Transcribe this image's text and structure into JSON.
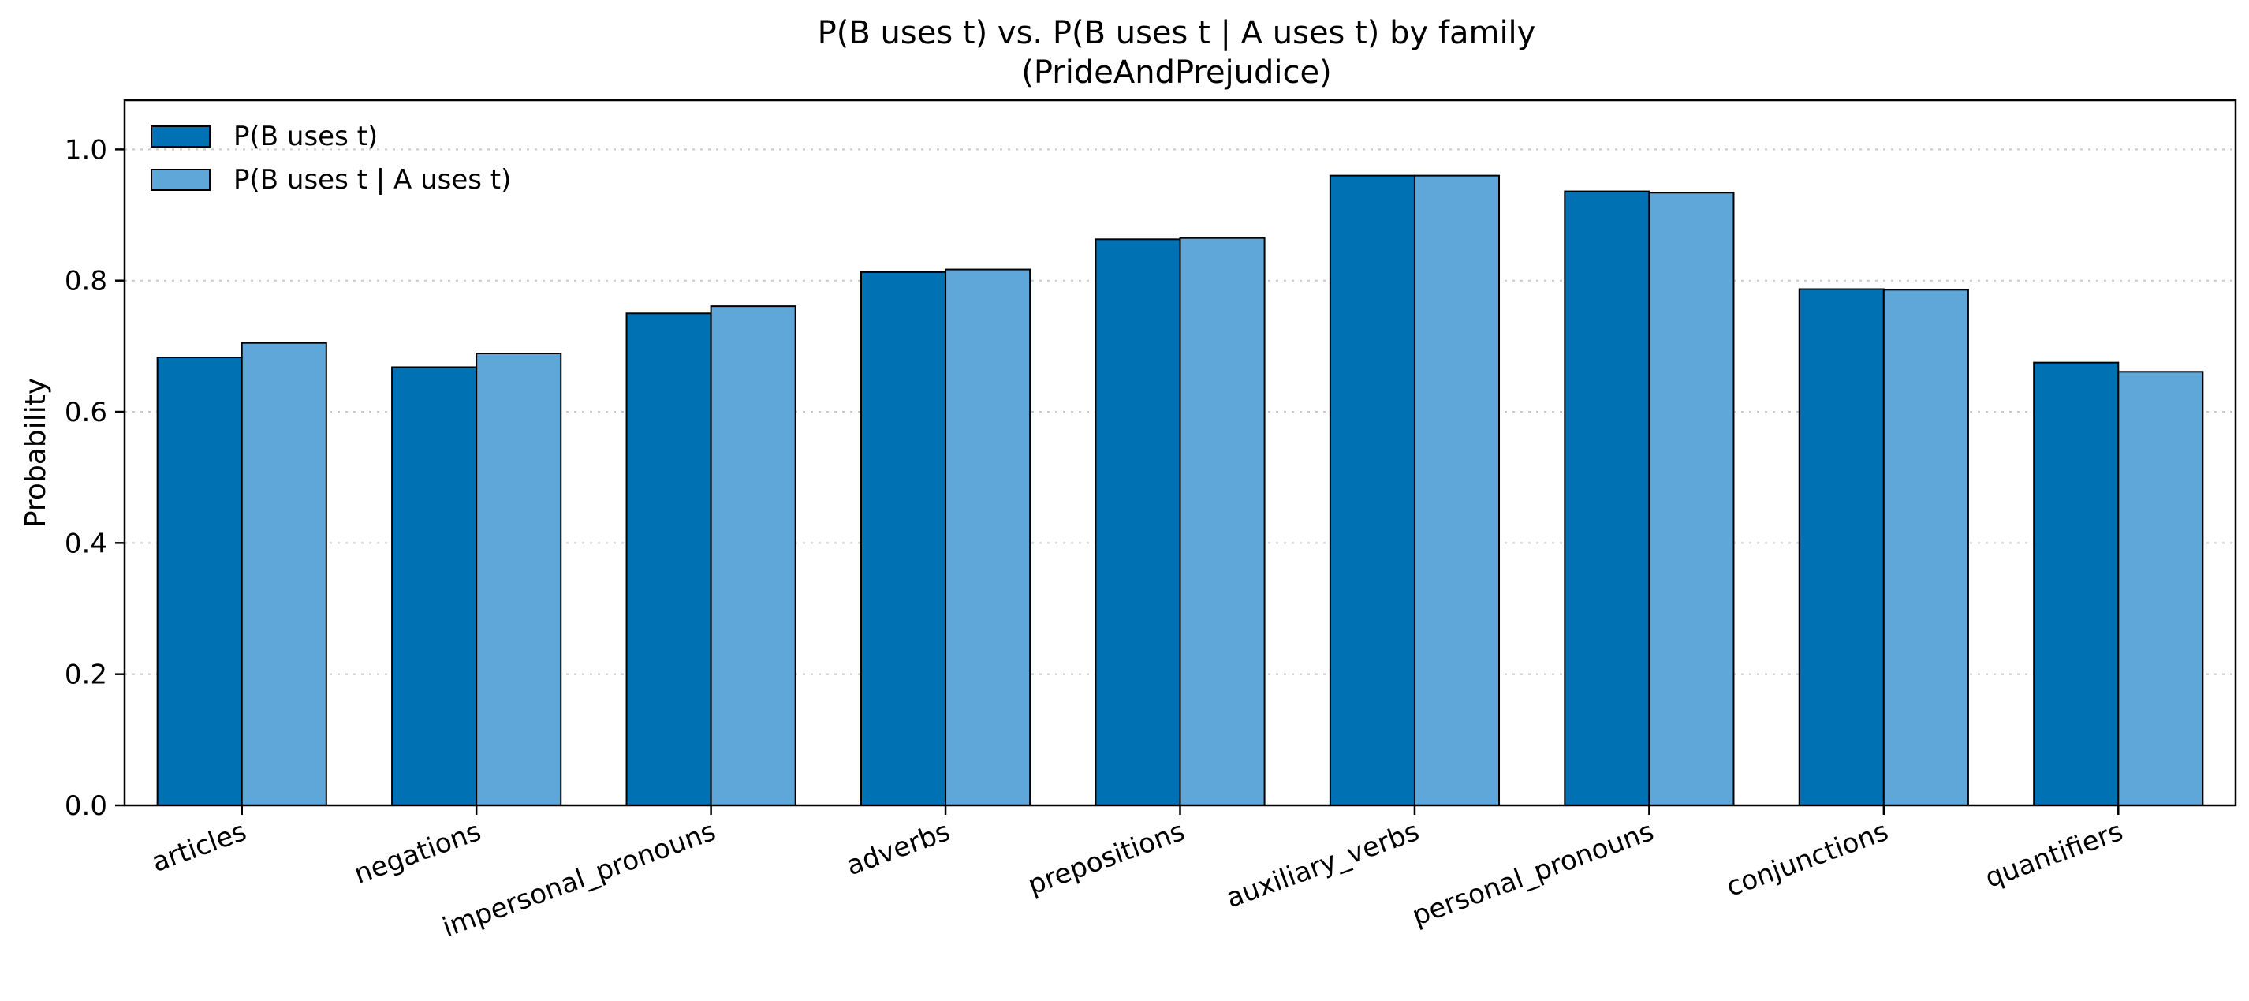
{
  "chart_data": {
    "type": "bar",
    "title": "P(B uses t) vs. P(B uses t | A uses t) by family",
    "subtitle": "(PrideAndPrejudice)",
    "xlabel": "",
    "ylabel": "Probability",
    "ylim": [
      0,
      1.075
    ],
    "yticks": [
      0.0,
      0.2,
      0.4,
      0.6,
      0.8,
      1.0
    ],
    "grid": "y-dotted",
    "legend_position": "top-left",
    "categories": [
      "articles",
      "negations",
      "impersonal_pronouns",
      "adverbs",
      "prepositions",
      "auxiliary_verbs",
      "personal_pronouns",
      "conjunctions",
      "quantifiers"
    ],
    "series": [
      {
        "name": "P(B uses t)",
        "color": "#0071b2",
        "values": [
          0.683,
          0.668,
          0.75,
          0.813,
          0.863,
          0.96,
          0.936,
          0.787,
          0.675
        ]
      },
      {
        "name": "P(B uses t | A uses t)",
        "color": "#5fa6d9",
        "values": [
          0.705,
          0.689,
          0.761,
          0.817,
          0.865,
          0.96,
          0.934,
          0.786,
          0.661
        ]
      }
    ]
  }
}
